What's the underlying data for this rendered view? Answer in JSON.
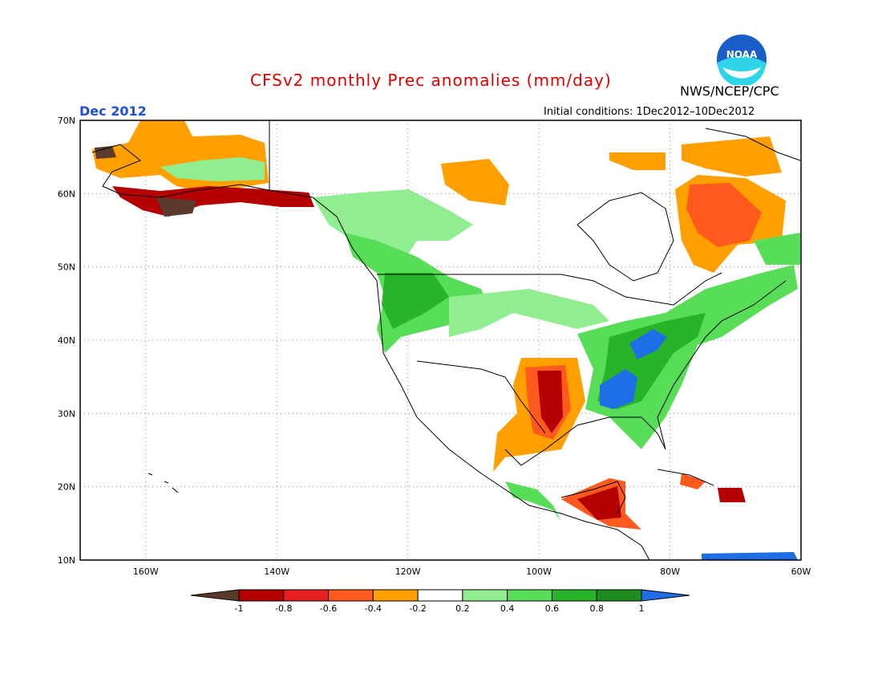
{
  "header": {
    "title": "CFSv2 monthly Prec anomalies (mm/day)",
    "agency": "NWS/NCEP/CPC",
    "period": "Dec 2012",
    "initial_conditions": "Initial conditions: 1Dec2012–10Dec2012",
    "logo_text": "NOAA"
  },
  "map": {
    "projection": "latitude-longitude",
    "lon_range": [
      -170,
      -60
    ],
    "lat_range": [
      10,
      70
    ],
    "lat_ticks": [
      "70N",
      "60N",
      "50N",
      "40N",
      "30N",
      "20N",
      "10N"
    ],
    "lon_ticks": [
      "160W",
      "140W",
      "120W",
      "100W",
      "80W",
      "60W"
    ],
    "grid": "dotted",
    "anomaly_regions": [
      {
        "name": "alaska-north",
        "category": "-0.4"
      },
      {
        "name": "alaska-south-coast",
        "category": "-0.8"
      },
      {
        "name": "baffin-hudson",
        "category": "-0.4"
      },
      {
        "name": "quebec-labrador",
        "category": "-0.6"
      },
      {
        "name": "texas-oklahoma",
        "category": "-0.8"
      },
      {
        "name": "central-america",
        "category": "-0.8"
      },
      {
        "name": "pacific-northwest",
        "category": "0.6"
      },
      {
        "name": "ohio-valley",
        "category": "1"
      },
      {
        "name": "lower-mississippi",
        "category": "1"
      },
      {
        "name": "northeast-us",
        "category": "0.6"
      },
      {
        "name": "northern-plains",
        "category": "0.2"
      }
    ]
  },
  "legend": {
    "labels": [
      "-1",
      "-0.8",
      "-0.6",
      "-0.4",
      "-0.2",
      "0.2",
      "0.4",
      "0.6",
      "0.8",
      "1"
    ],
    "colors": [
      "#5a3a2a",
      "#b40000",
      "#e62020",
      "#ff5a1e",
      "#ffa000",
      "#ffffff",
      "#90ee90",
      "#58dd58",
      "#28b428",
      "#1e8c1e",
      "#1e6ee6"
    ]
  }
}
